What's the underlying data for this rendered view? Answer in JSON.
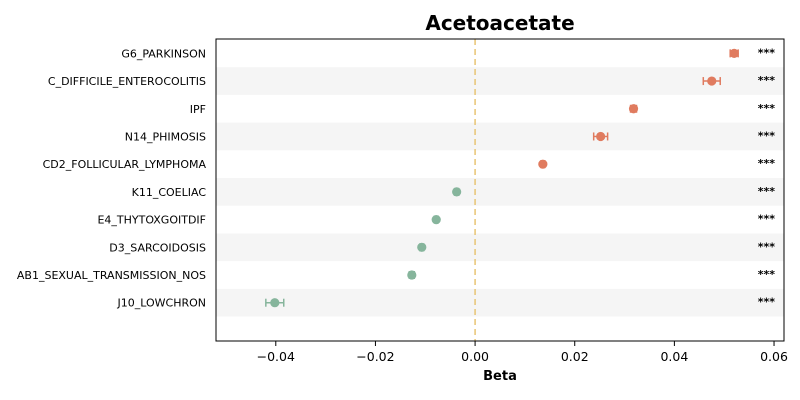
{
  "chart_data": {
    "type": "scatter",
    "title": "Acetoacetate",
    "xlabel": "Beta",
    "xlim": [
      -0.052,
      0.062
    ],
    "xticks": [
      -0.04,
      -0.02,
      0.0,
      0.02,
      0.04,
      0.06
    ],
    "xtick_labels": [
      "−0.04",
      "−0.02",
      "0.00",
      "0.02",
      "0.04",
      "0.06"
    ],
    "reference_line": 0,
    "categories": [
      "G6_PARKINSON",
      "C_DIFFICILE_ENTEROCOLITIS",
      "IPF",
      "N14_PHIMOSIS",
      "CD2_FOLLICULAR_LYMPHOMA",
      "K11_COELIAC",
      "E4_THYTOXGOITDIF",
      "D3_SARCOIDOSIS",
      "AB1_SEXUAL_TRANSMISSION_NOS",
      "J10_LOWCHRON"
    ],
    "beta": [
      0.052,
      0.0475,
      0.0318,
      0.0252,
      0.0136,
      -0.0037,
      -0.0078,
      -0.0107,
      -0.0127,
      -0.0402
    ],
    "ci_low": [
      0.0512,
      0.0458,
      0.0312,
      0.0238,
      0.0132,
      -0.0041,
      -0.0082,
      -0.0111,
      -0.0132,
      -0.042
    ],
    "ci_high": [
      0.0528,
      0.0492,
      0.0324,
      0.0266,
      0.014,
      -0.0033,
      -0.0074,
      -0.0103,
      -0.0122,
      -0.0384
    ],
    "significance": [
      "***",
      "***",
      "***",
      "***",
      "***",
      "***",
      "***",
      "***",
      "***",
      "***"
    ],
    "colors": {
      "positive": "#e07b5f",
      "negative": "#86b59c",
      "reference_line": "#e9c87c",
      "band": "#f5f5f5"
    }
  }
}
